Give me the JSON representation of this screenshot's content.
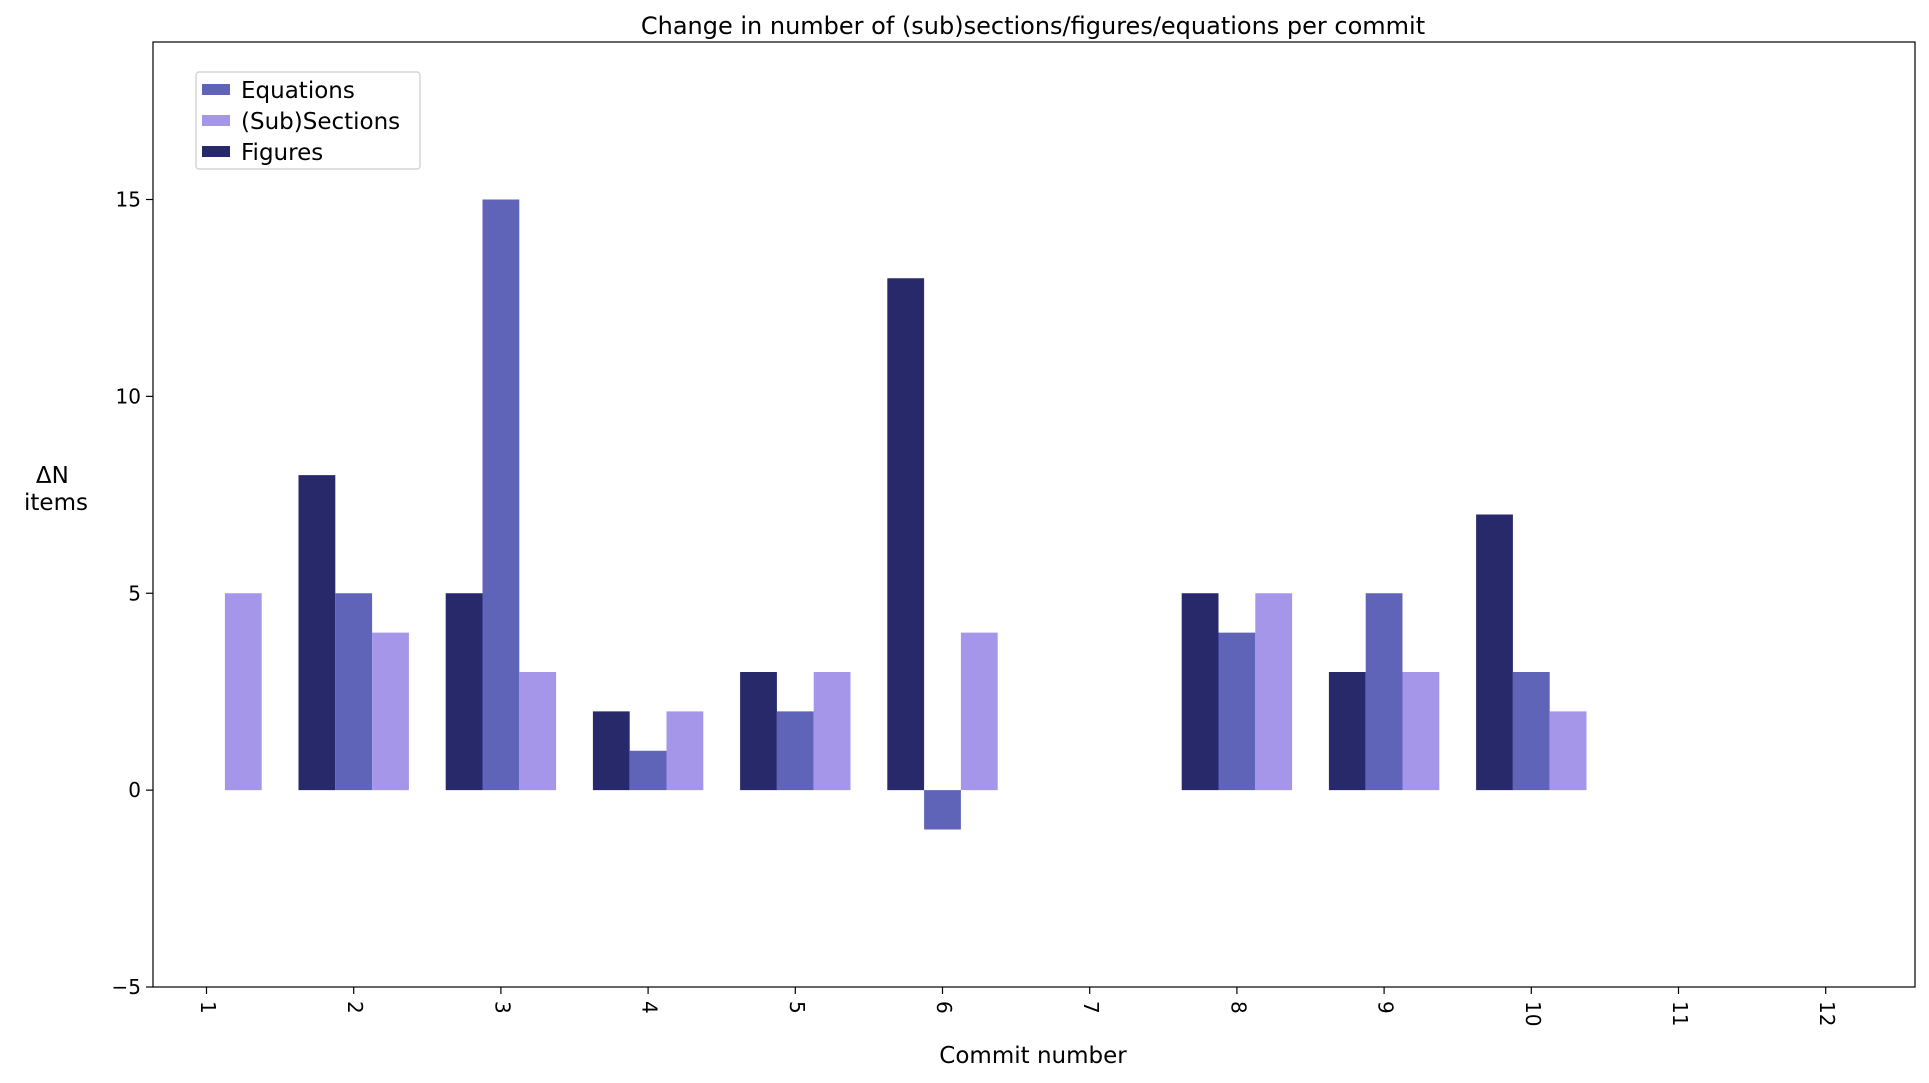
{
  "chart_data": {
    "type": "bar",
    "title": "Change in number of (sub)sections/figures/equations per commit",
    "xlabel": "Commit number",
    "ylabel": [
      "ΔN",
      "items"
    ],
    "categories": [
      "1",
      "2",
      "3",
      "4",
      "5",
      "6",
      "7",
      "8",
      "9",
      "10",
      "11",
      "12"
    ],
    "ylim": [
      -5,
      19
    ],
    "yticks": [
      -5,
      0,
      5,
      10,
      15
    ],
    "ytick_labels": [
      "−5",
      "0",
      "5",
      "10",
      "15"
    ],
    "grid": false,
    "legend_position": "top-left",
    "bar_order": [
      "Figures",
      "Equations",
      "(Sub)Sections"
    ],
    "legend_order": [
      "Equations",
      "(Sub)Sections",
      "Figures"
    ],
    "series": [
      {
        "name": "Equations",
        "color": "#5f64b8",
        "values": [
          0,
          5,
          15,
          1,
          2,
          -1,
          0,
          4,
          5,
          3,
          0,
          0
        ]
      },
      {
        "name": "(Sub)Sections",
        "color": "#a596ea",
        "values": [
          5,
          4,
          3,
          2,
          3,
          4,
          0,
          5,
          3,
          2,
          0,
          0
        ]
      },
      {
        "name": "Figures",
        "color": "#27296b",
        "values": [
          0,
          8,
          5,
          2,
          3,
          13,
          0,
          5,
          3,
          7,
          0,
          0
        ]
      }
    ]
  }
}
